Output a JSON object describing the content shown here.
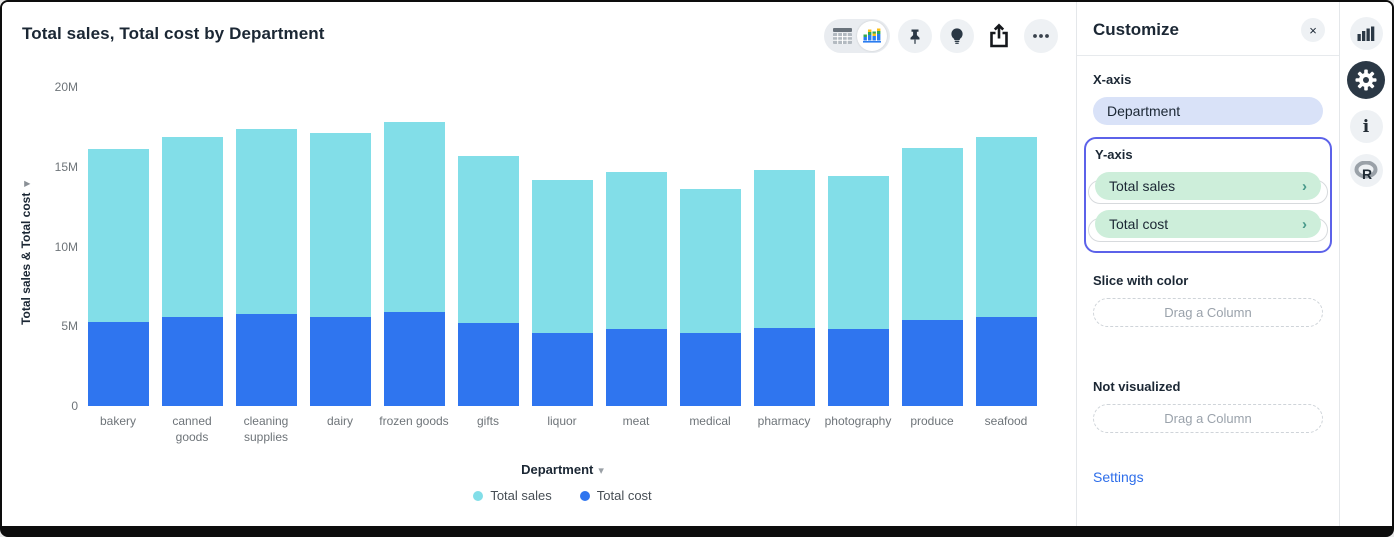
{
  "chart": {
    "title": "Total sales, Total cost by Department",
    "toolbar_icons": [
      "table-view-icon",
      "bar-chart-view-icon",
      "pin-icon",
      "lightbulb-icon",
      "share-icon",
      "ellipsis-icon"
    ],
    "y_axis_title": "Total sales & Total cost",
    "y_axis_caret": "▾",
    "x_axis_control": "Department",
    "x_axis_caret": "▾"
  },
  "chart_data": {
    "type": "bar",
    "stacked": true,
    "title": "Total sales, Total cost by Department",
    "xlabel": "Department",
    "ylabel": "Total sales & Total cost",
    "categories": [
      "bakery",
      "canned goods",
      "cleaning supplies",
      "dairy",
      "frozen goods",
      "gifts",
      "liquor",
      "meat",
      "medical",
      "pharmacy",
      "photography",
      "produce",
      "seafood"
    ],
    "series": [
      {
        "name": "Total sales",
        "color": "#82dee8",
        "unit": "M",
        "values": [
          10.8,
          11.3,
          11.6,
          11.5,
          11.9,
          10.5,
          9.6,
          9.9,
          9.05,
          9.9,
          9.6,
          10.8,
          11.3
        ]
      },
      {
        "name": "Total cost",
        "color": "#2f75ef",
        "unit": "M",
        "values": [
          5.3,
          5.6,
          5.8,
          5.6,
          5.9,
          5.2,
          4.6,
          4.8,
          4.55,
          4.9,
          4.8,
          5.4,
          5.6
        ]
      }
    ],
    "stack_order_bottom_to_top": [
      "Total cost",
      "Total sales"
    ],
    "ylim": [
      0,
      20
    ],
    "yticks": [
      {
        "value": 0,
        "label": "0"
      },
      {
        "value": 5,
        "label": "5M"
      },
      {
        "value": 10,
        "label": "10M"
      },
      {
        "value": 15,
        "label": "15M"
      },
      {
        "value": 20,
        "label": "20M"
      }
    ],
    "grid": false,
    "legend_position": "bottom"
  },
  "panel": {
    "title": "Customize",
    "close_glyph": "×",
    "x_axis_label": "X-axis",
    "x_axis_value": "Department",
    "y_axis_label": "Y-axis",
    "y_fields": [
      "Total sales",
      "Total cost"
    ],
    "field_chevron": "›",
    "slice_label": "Slice with color",
    "slice_placeholder": "Drag a Column",
    "not_visualized_label": "Not visualized",
    "not_visualized_placeholder": "Drag a Column",
    "settings_label": "Settings",
    "highlight_border_color": "#5c62e9",
    "x_pill_color": "#d9e2f8",
    "y_pill_color": "#cdeeda"
  },
  "rail_icons": [
    "bar-chart-icon",
    "gear-icon",
    "info-icon",
    "r-logo-icon"
  ]
}
